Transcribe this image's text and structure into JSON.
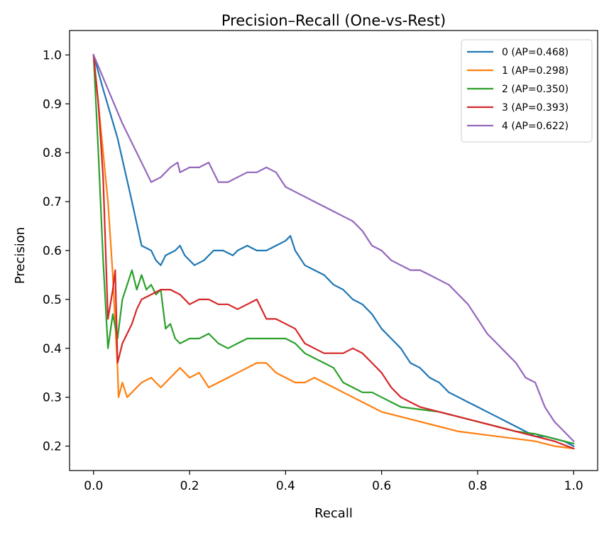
{
  "chart_data": {
    "type": "line",
    "title": "Precision–Recall (One-vs-Rest)",
    "xlabel": "Recall",
    "ylabel": "Precision",
    "xlim": [
      -0.05,
      1.05
    ],
    "ylim": [
      0.15,
      1.05
    ],
    "xticks": [
      0.0,
      0.2,
      0.4,
      0.6,
      0.8,
      1.0
    ],
    "xtick_labels": [
      "0.0",
      "0.2",
      "0.4",
      "0.6",
      "0.8",
      "1.0"
    ],
    "yticks": [
      0.2,
      0.3,
      0.4,
      0.5,
      0.6,
      0.7,
      0.8,
      0.9,
      1.0
    ],
    "ytick_labels": [
      "0.2",
      "0.3",
      "0.4",
      "0.5",
      "0.6",
      "0.7",
      "0.8",
      "0.9",
      "1.0"
    ],
    "grid": false,
    "legend_position": "top-right",
    "series": [
      {
        "name": "0 (AP=0.468)",
        "color": "#1f77b4",
        "points": [
          [
            0.0,
            1.0
          ],
          [
            0.02,
            0.93
          ],
          [
            0.05,
            0.83
          ],
          [
            0.08,
            0.7
          ],
          [
            0.1,
            0.61
          ],
          [
            0.12,
            0.6
          ],
          [
            0.13,
            0.58
          ],
          [
            0.14,
            0.57
          ],
          [
            0.15,
            0.59
          ],
          [
            0.17,
            0.6
          ],
          [
            0.18,
            0.61
          ],
          [
            0.19,
            0.59
          ],
          [
            0.2,
            0.58
          ],
          [
            0.21,
            0.57
          ],
          [
            0.23,
            0.58
          ],
          [
            0.25,
            0.6
          ],
          [
            0.27,
            0.6
          ],
          [
            0.29,
            0.59
          ],
          [
            0.3,
            0.6
          ],
          [
            0.32,
            0.61
          ],
          [
            0.34,
            0.6
          ],
          [
            0.36,
            0.6
          ],
          [
            0.38,
            0.61
          ],
          [
            0.4,
            0.62
          ],
          [
            0.41,
            0.63
          ],
          [
            0.42,
            0.6
          ],
          [
            0.44,
            0.57
          ],
          [
            0.46,
            0.56
          ],
          [
            0.48,
            0.55
          ],
          [
            0.5,
            0.53
          ],
          [
            0.52,
            0.52
          ],
          [
            0.54,
            0.5
          ],
          [
            0.56,
            0.49
          ],
          [
            0.58,
            0.47
          ],
          [
            0.6,
            0.44
          ],
          [
            0.62,
            0.42
          ],
          [
            0.64,
            0.4
          ],
          [
            0.66,
            0.37
          ],
          [
            0.68,
            0.36
          ],
          [
            0.7,
            0.34
          ],
          [
            0.72,
            0.33
          ],
          [
            0.74,
            0.31
          ],
          [
            0.76,
            0.3
          ],
          [
            0.78,
            0.29
          ],
          [
            0.8,
            0.28
          ],
          [
            0.82,
            0.27
          ],
          [
            0.84,
            0.26
          ],
          [
            0.86,
            0.25
          ],
          [
            0.88,
            0.24
          ],
          [
            0.9,
            0.23
          ],
          [
            0.92,
            0.22
          ],
          [
            0.94,
            0.22
          ],
          [
            0.96,
            0.215
          ],
          [
            0.98,
            0.21
          ],
          [
            1.0,
            0.2
          ]
        ]
      },
      {
        "name": "1 (AP=0.298)",
        "color": "#ff7f0e",
        "points": [
          [
            0.0,
            1.0
          ],
          [
            0.015,
            0.85
          ],
          [
            0.03,
            0.7
          ],
          [
            0.04,
            0.55
          ],
          [
            0.045,
            0.45
          ],
          [
            0.05,
            0.36
          ],
          [
            0.052,
            0.3
          ],
          [
            0.06,
            0.33
          ],
          [
            0.07,
            0.3
          ],
          [
            0.08,
            0.31
          ],
          [
            0.09,
            0.32
          ],
          [
            0.1,
            0.33
          ],
          [
            0.12,
            0.34
          ],
          [
            0.14,
            0.32
          ],
          [
            0.15,
            0.33
          ],
          [
            0.17,
            0.35
          ],
          [
            0.18,
            0.36
          ],
          [
            0.2,
            0.34
          ],
          [
            0.22,
            0.35
          ],
          [
            0.24,
            0.32
          ],
          [
            0.26,
            0.33
          ],
          [
            0.28,
            0.34
          ],
          [
            0.3,
            0.35
          ],
          [
            0.32,
            0.36
          ],
          [
            0.34,
            0.37
          ],
          [
            0.36,
            0.37
          ],
          [
            0.38,
            0.35
          ],
          [
            0.4,
            0.34
          ],
          [
            0.42,
            0.33
          ],
          [
            0.44,
            0.33
          ],
          [
            0.46,
            0.34
          ],
          [
            0.48,
            0.33
          ],
          [
            0.5,
            0.32
          ],
          [
            0.52,
            0.31
          ],
          [
            0.54,
            0.3
          ],
          [
            0.56,
            0.29
          ],
          [
            0.58,
            0.28
          ],
          [
            0.6,
            0.27
          ],
          [
            0.64,
            0.26
          ],
          [
            0.68,
            0.25
          ],
          [
            0.72,
            0.24
          ],
          [
            0.76,
            0.23
          ],
          [
            0.8,
            0.225
          ],
          [
            0.84,
            0.22
          ],
          [
            0.88,
            0.215
          ],
          [
            0.92,
            0.21
          ],
          [
            0.96,
            0.2
          ],
          [
            1.0,
            0.195
          ]
        ]
      },
      {
        "name": "2 (AP=0.350)",
        "color": "#2ca02c",
        "points": [
          [
            0.0,
            1.0
          ],
          [
            0.01,
            0.8
          ],
          [
            0.02,
            0.58
          ],
          [
            0.03,
            0.4
          ],
          [
            0.04,
            0.47
          ],
          [
            0.05,
            0.42
          ],
          [
            0.06,
            0.5
          ],
          [
            0.08,
            0.56
          ],
          [
            0.09,
            0.52
          ],
          [
            0.1,
            0.55
          ],
          [
            0.11,
            0.52
          ],
          [
            0.12,
            0.53
          ],
          [
            0.13,
            0.51
          ],
          [
            0.14,
            0.52
          ],
          [
            0.15,
            0.44
          ],
          [
            0.16,
            0.45
          ],
          [
            0.17,
            0.42
          ],
          [
            0.18,
            0.41
          ],
          [
            0.2,
            0.42
          ],
          [
            0.22,
            0.42
          ],
          [
            0.24,
            0.43
          ],
          [
            0.26,
            0.41
          ],
          [
            0.28,
            0.4
          ],
          [
            0.3,
            0.41
          ],
          [
            0.32,
            0.42
          ],
          [
            0.34,
            0.42
          ],
          [
            0.36,
            0.42
          ],
          [
            0.38,
            0.42
          ],
          [
            0.4,
            0.42
          ],
          [
            0.42,
            0.41
          ],
          [
            0.44,
            0.39
          ],
          [
            0.46,
            0.38
          ],
          [
            0.48,
            0.37
          ],
          [
            0.5,
            0.36
          ],
          [
            0.52,
            0.33
          ],
          [
            0.54,
            0.32
          ],
          [
            0.56,
            0.31
          ],
          [
            0.58,
            0.31
          ],
          [
            0.6,
            0.3
          ],
          [
            0.62,
            0.29
          ],
          [
            0.64,
            0.28
          ],
          [
            0.68,
            0.275
          ],
          [
            0.72,
            0.27
          ],
          [
            0.76,
            0.26
          ],
          [
            0.8,
            0.25
          ],
          [
            0.84,
            0.24
          ],
          [
            0.88,
            0.23
          ],
          [
            0.92,
            0.225
          ],
          [
            0.96,
            0.215
          ],
          [
            1.0,
            0.205
          ]
        ]
      },
      {
        "name": "3 (AP=0.393)",
        "color": "#d62728",
        "points": [
          [
            0.0,
            1.0
          ],
          [
            0.01,
            0.9
          ],
          [
            0.02,
            0.75
          ],
          [
            0.03,
            0.46
          ],
          [
            0.04,
            0.52
          ],
          [
            0.045,
            0.56
          ],
          [
            0.05,
            0.37
          ],
          [
            0.06,
            0.41
          ],
          [
            0.07,
            0.43
          ],
          [
            0.08,
            0.45
          ],
          [
            0.09,
            0.48
          ],
          [
            0.1,
            0.5
          ],
          [
            0.12,
            0.51
          ],
          [
            0.14,
            0.52
          ],
          [
            0.16,
            0.52
          ],
          [
            0.18,
            0.51
          ],
          [
            0.2,
            0.49
          ],
          [
            0.22,
            0.5
          ],
          [
            0.24,
            0.5
          ],
          [
            0.26,
            0.49
          ],
          [
            0.28,
            0.49
          ],
          [
            0.3,
            0.48
          ],
          [
            0.32,
            0.49
          ],
          [
            0.34,
            0.5
          ],
          [
            0.36,
            0.46
          ],
          [
            0.38,
            0.46
          ],
          [
            0.4,
            0.45
          ],
          [
            0.42,
            0.44
          ],
          [
            0.44,
            0.41
          ],
          [
            0.46,
            0.4
          ],
          [
            0.48,
            0.39
          ],
          [
            0.5,
            0.39
          ],
          [
            0.52,
            0.39
          ],
          [
            0.54,
            0.4
          ],
          [
            0.56,
            0.39
          ],
          [
            0.58,
            0.37
          ],
          [
            0.6,
            0.35
          ],
          [
            0.62,
            0.32
          ],
          [
            0.64,
            0.3
          ],
          [
            0.66,
            0.29
          ],
          [
            0.68,
            0.28
          ],
          [
            0.72,
            0.27
          ],
          [
            0.76,
            0.26
          ],
          [
            0.8,
            0.25
          ],
          [
            0.84,
            0.24
          ],
          [
            0.88,
            0.23
          ],
          [
            0.92,
            0.22
          ],
          [
            0.96,
            0.21
          ],
          [
            1.0,
            0.195
          ]
        ]
      },
      {
        "name": "4 (AP=0.622)",
        "color": "#9467bd",
        "points": [
          [
            0.0,
            1.0
          ],
          [
            0.03,
            0.93
          ],
          [
            0.06,
            0.86
          ],
          [
            0.09,
            0.8
          ],
          [
            0.12,
            0.74
          ],
          [
            0.14,
            0.75
          ],
          [
            0.16,
            0.77
          ],
          [
            0.175,
            0.78
          ],
          [
            0.18,
            0.76
          ],
          [
            0.2,
            0.77
          ],
          [
            0.22,
            0.77
          ],
          [
            0.24,
            0.78
          ],
          [
            0.25,
            0.76
          ],
          [
            0.26,
            0.74
          ],
          [
            0.28,
            0.74
          ],
          [
            0.3,
            0.75
          ],
          [
            0.32,
            0.76
          ],
          [
            0.34,
            0.76
          ],
          [
            0.36,
            0.77
          ],
          [
            0.38,
            0.76
          ],
          [
            0.4,
            0.73
          ],
          [
            0.42,
            0.72
          ],
          [
            0.44,
            0.71
          ],
          [
            0.46,
            0.7
          ],
          [
            0.48,
            0.69
          ],
          [
            0.5,
            0.68
          ],
          [
            0.52,
            0.67
          ],
          [
            0.54,
            0.66
          ],
          [
            0.56,
            0.64
          ],
          [
            0.58,
            0.61
          ],
          [
            0.6,
            0.6
          ],
          [
            0.62,
            0.58
          ],
          [
            0.64,
            0.57
          ],
          [
            0.66,
            0.56
          ],
          [
            0.68,
            0.56
          ],
          [
            0.7,
            0.55
          ],
          [
            0.72,
            0.54
          ],
          [
            0.74,
            0.53
          ],
          [
            0.76,
            0.51
          ],
          [
            0.78,
            0.49
          ],
          [
            0.8,
            0.46
          ],
          [
            0.82,
            0.43
          ],
          [
            0.84,
            0.41
          ],
          [
            0.86,
            0.39
          ],
          [
            0.88,
            0.37
          ],
          [
            0.9,
            0.34
          ],
          [
            0.92,
            0.33
          ],
          [
            0.94,
            0.28
          ],
          [
            0.96,
            0.25
          ],
          [
            0.98,
            0.23
          ],
          [
            1.0,
            0.21
          ]
        ]
      }
    ]
  }
}
